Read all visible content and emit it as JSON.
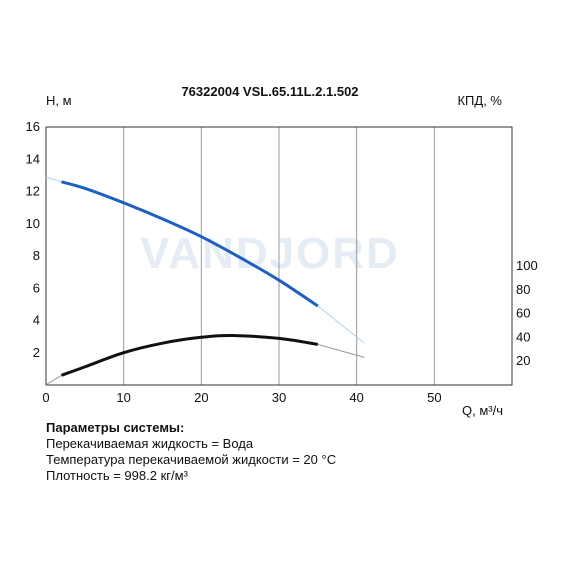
{
  "chart_data": {
    "type": "line",
    "title": "76322004 VSL.65.11L.2.1.502",
    "y_label_left": "H, м",
    "y_label_right": "КПД, %",
    "x_label": "Q, м³/ч",
    "xlim": [
      0,
      60
    ],
    "ylim_left": [
      0,
      16
    ],
    "x_ticks": [
      0,
      10,
      20,
      30,
      40,
      50
    ],
    "y_ticks_left": [
      2,
      4,
      6,
      8,
      10,
      12,
      14,
      16
    ],
    "y_ticks_right": [
      20,
      40,
      60,
      80,
      100
    ],
    "watermark": "VANDJORD",
    "grid": true,
    "series": [
      {
        "color": "#1f5fbf",
        "axis": "left",
        "x": [
          2,
          5,
          10,
          15,
          20,
          25,
          30,
          35
        ],
        "y": [
          12.6,
          12.2,
          11.3,
          10.3,
          9.2,
          7.9,
          6.5,
          4.9
        ]
      },
      {
        "color": "#a9d1ef",
        "axis": "left",
        "style": "extension",
        "x": [
          0,
          2,
          35,
          41
        ],
        "y": [
          12.9,
          12.6,
          4.9,
          2.6
        ]
      },
      {
        "color": "#111111",
        "axis": "right",
        "x": [
          2,
          5,
          10,
          15,
          20,
          24,
          30,
          35
        ],
        "y": [
          8,
          15,
          27,
          35,
          40,
          41.5,
          39,
          34
        ]
      },
      {
        "color": "#999999",
        "axis": "right",
        "style": "extension",
        "x": [
          0,
          2,
          35,
          41
        ],
        "y": [
          0,
          8,
          34,
          23
        ]
      }
    ]
  },
  "params": {
    "heading": "Параметры системы:",
    "liquid": "Перекачиваемая жидкость = Вода",
    "temperature": "Температура перекачиваемой жидкости = 20 °C",
    "density": "Плотность = 998.2 кг/м³"
  }
}
